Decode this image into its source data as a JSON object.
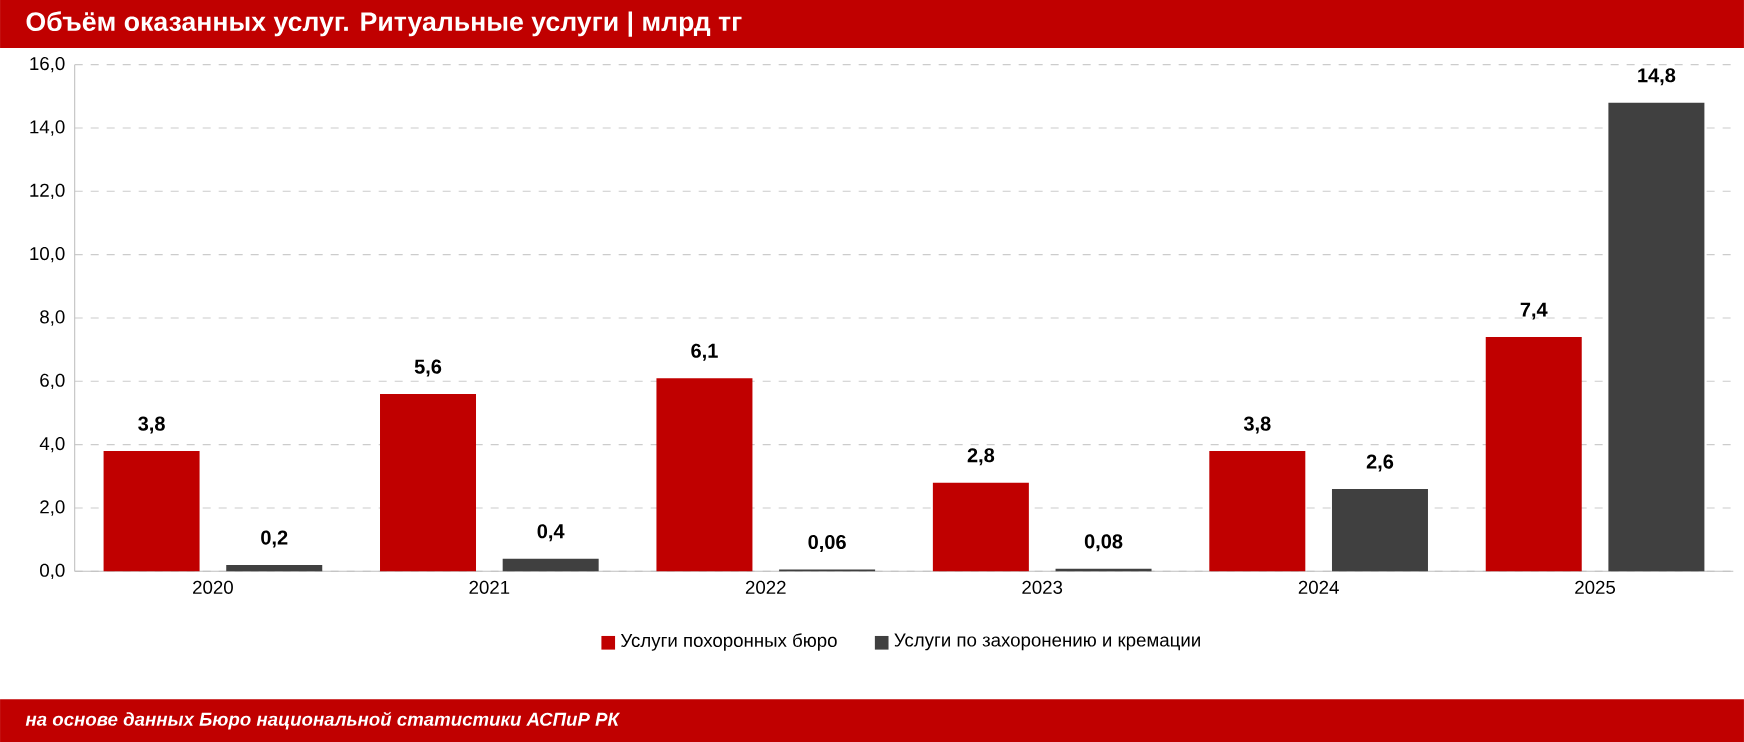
{
  "chart_data": {
    "type": "bar",
    "title": "Объём оказанных услуг. Ритуальные услуги | млрд тг",
    "categories": [
      "2020",
      "2021",
      "2022",
      "2023",
      "2024",
      "2025"
    ],
    "series": [
      {
        "name": "Услуги похоронных бюро",
        "color": "#c00000",
        "values": [
          3.8,
          5.6,
          6.1,
          2.8,
          3.8,
          7.4
        ],
        "value_labels": [
          "3,8",
          "5,6",
          "6,1",
          "2,8",
          "3,8",
          "7,4"
        ]
      },
      {
        "name": "Услуги по захоронению и кремации",
        "color": "#404040",
        "values": [
          0.2,
          0.4,
          0.06,
          0.08,
          2.6,
          14.8
        ],
        "value_labels": [
          "0,2",
          "0,4",
          "0,06",
          "0,08",
          "2,6",
          "14,8"
        ]
      }
    ],
    "ylim": [
      0,
      16
    ],
    "yticks": [
      {
        "value": 0,
        "label": "0,0"
      },
      {
        "value": 2,
        "label": "2,0"
      },
      {
        "value": 4,
        "label": "4,0"
      },
      {
        "value": 6,
        "label": "6,0"
      },
      {
        "value": 8,
        "label": "8,0"
      },
      {
        "value": 10,
        "label": "10,0"
      },
      {
        "value": 12,
        "label": "12,0"
      },
      {
        "value": 14,
        "label": "14,0"
      },
      {
        "value": 16,
        "label": "16,0"
      }
    ],
    "grid": "y",
    "legend": "bottom",
    "annotations": [
      "на основе данных Бюро национальной статистики АСПиР РК"
    ]
  }
}
